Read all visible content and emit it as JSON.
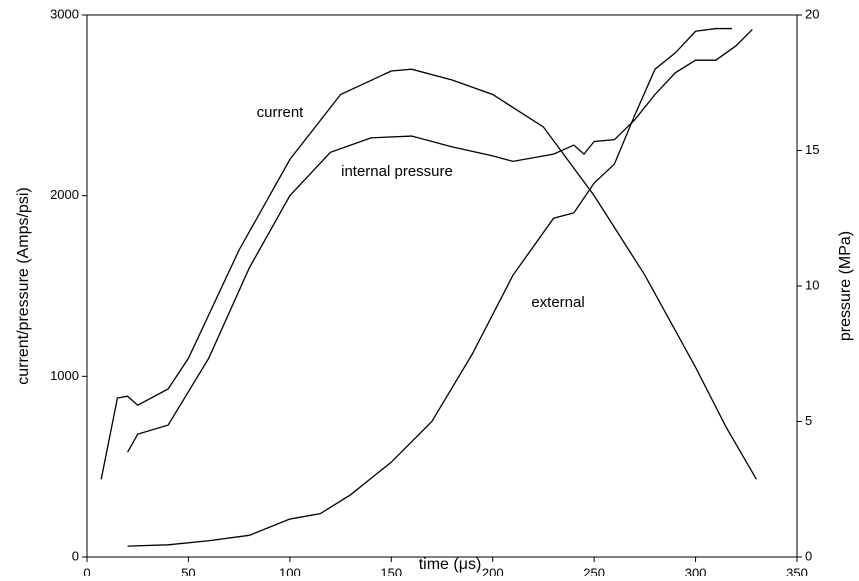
{
  "chart_data": {
    "type": "line",
    "xlabel": "time (μs)",
    "ylabel": "current/pressure (Amps/psi)",
    "y2label": "pressure (MPa)",
    "annotations": [
      "current",
      "internal pressure",
      "external"
    ],
    "xlim": [
      0,
      350
    ],
    "xticks": [
      0,
      50,
      100,
      150,
      200,
      250,
      300,
      350
    ],
    "ylim": [
      0,
      3000
    ],
    "yticks": [
      0,
      1000,
      2000,
      3000
    ],
    "y2lim": [
      0,
      20
    ],
    "y2ticks": [
      0,
      5,
      10,
      15,
      20
    ],
    "grid": false,
    "series": [
      {
        "name": "current",
        "color": "#000000",
        "x": [
          7,
          15,
          20,
          25,
          40,
          50,
          75,
          100,
          125,
          150,
          160,
          180,
          200,
          225,
          250,
          275,
          300,
          315,
          330
        ],
        "values": [
          430,
          880,
          890,
          840,
          930,
          1100,
          1700,
          2200,
          2560,
          2690,
          2700,
          2640,
          2560,
          2380,
          2000,
          1560,
          1050,
          720,
          430
        ]
      },
      {
        "name": "internal pressure",
        "color": "#000000",
        "x": [
          20,
          25,
          40,
          60,
          80,
          100,
          120,
          140,
          160,
          180,
          200,
          210,
          230,
          240,
          245,
          250,
          260,
          270,
          280,
          290,
          300,
          310,
          320,
          328
        ],
        "values": [
          580,
          680,
          730,
          1100,
          1600,
          2000,
          2240,
          2320,
          2330,
          2270,
          2220,
          2190,
          2230,
          2280,
          2230,
          2300,
          2310,
          2420,
          2560,
          2680,
          2750,
          2750,
          2830,
          2920
        ]
      },
      {
        "name": "external",
        "color": "#000000",
        "axis": "y2",
        "x": [
          20,
          40,
          60,
          80,
          100,
          115,
          130,
          140,
          150,
          170,
          190,
          210,
          230,
          240,
          250,
          260,
          270,
          280,
          290,
          300,
          310,
          318
        ],
        "values": [
          0.4,
          0.45,
          0.6,
          0.8,
          1.4,
          1.6,
          2.3,
          2.9,
          3.5,
          5.0,
          7.5,
          10.4,
          12.5,
          12.7,
          13.8,
          14.5,
          16.3,
          18,
          18.6,
          19.4,
          19.5,
          19.5
        ]
      }
    ]
  }
}
